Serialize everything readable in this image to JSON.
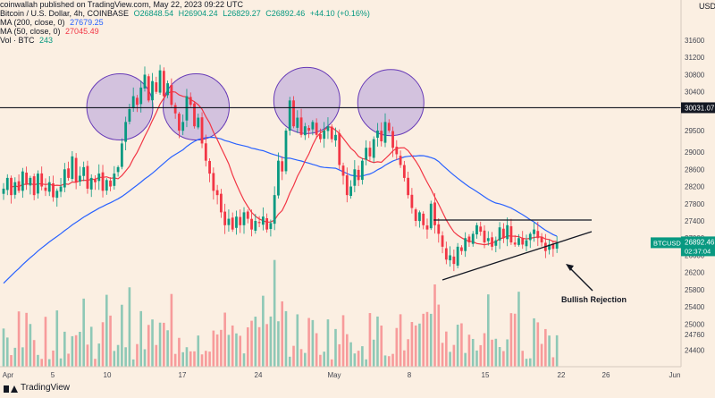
{
  "header": {
    "published": "coinwallah published on TradingView.com, May 22, 2023 09:22 UTC",
    "symbol_line": {
      "name": "Bitcoin / U.S. Dollar, 4h, COINBASE",
      "open": "O26848.54",
      "high": "H26904.24",
      "low": "L26829.27",
      "close": "C26892.46",
      "change": "+44.10 (+0.16%)"
    },
    "ma200": {
      "label": "MA (200, close, 0)",
      "value": "27679.25"
    },
    "ma50": {
      "label": "MA (50, close, 0)",
      "value": "27045.49"
    },
    "vol": {
      "label": "Vol · BTC",
      "value": "243"
    }
  },
  "colors": {
    "background": "#fbefe2",
    "up": "#089981",
    "down": "#f23645",
    "ma200": "#2962ff",
    "ma50": "#f23645",
    "circle_fill": "#b39ddb",
    "circle_stroke": "#673ab7"
  },
  "chart_data": {
    "type": "candlestick",
    "timeframe": "4h",
    "y_axis": {
      "position": "right",
      "ticks": [
        31600,
        31200,
        30800,
        30400,
        29500,
        29000,
        28600,
        28200,
        27800,
        27400,
        27000,
        26600,
        26200,
        25800,
        25400,
        25000,
        24760,
        24400
      ]
    },
    "x_axis": {
      "ticks": [
        "Apr",
        "5",
        "10",
        "17",
        "24",
        "May",
        "8",
        "15",
        "22",
        "26",
        "Jun"
      ]
    },
    "resistance_level": {
      "value": 30031.07,
      "label": "30031.07"
    },
    "price_badge": {
      "symbol": "BTCUSD",
      "price": "26892.46",
      "countdown": "02:37:04"
    },
    "highlight_circles": 4,
    "close_path": [
      28150,
      28400,
      28000,
      28300,
      28100,
      28550,
      28250,
      28400,
      28000,
      28500,
      28200,
      28100,
      28300,
      27950,
      28100,
      28200,
      28600,
      28400,
      28900,
      28300,
      28450,
      28650,
      28150,
      28400,
      28300,
      28500,
      28100,
      28350,
      28200,
      28500,
      28650,
      29200,
      29700,
      30000,
      30300,
      30100,
      30500,
      30800,
      30200,
      30650,
      30400,
      30900,
      30300,
      30600,
      30100,
      29900,
      29500,
      29700,
      30300,
      30100,
      29600,
      29800,
      29200,
      28800,
      28500,
      28100,
      28000,
      27600,
      27300,
      27450,
      27200,
      27500,
      27300,
      27600,
      27450,
      27200,
      27400,
      27350,
      27500,
      27200,
      27350,
      28000,
      28800,
      28550,
      29500,
      30200,
      29600,
      29800,
      29400,
      29600,
      29500,
      29700,
      29400,
      29300,
      29500,
      29600,
      29300,
      29400,
      28700,
      28450,
      28000,
      28200,
      28600,
      28350,
      28800,
      29100,
      28900,
      29300,
      29500,
      29250,
      29700,
      29500,
      29100,
      28950,
      28700,
      28400,
      28000,
      27700,
      27400,
      27600,
      27300,
      27200,
      27800,
      27300,
      27100,
      26800,
      26500,
      26600,
      26400,
      26800,
      26700,
      27000,
      26900,
      27100,
      27300,
      27150,
      26900,
      27000,
      26800,
      26950,
      27250,
      27000,
      27300,
      26900,
      26850,
      27000,
      26850,
      26950,
      27100,
      27200,
      27000,
      26900,
      26700,
      26850,
      26750,
      26900
    ],
    "annotations": [
      {
        "text": "Bullish Rejection"
      }
    ]
  }
}
